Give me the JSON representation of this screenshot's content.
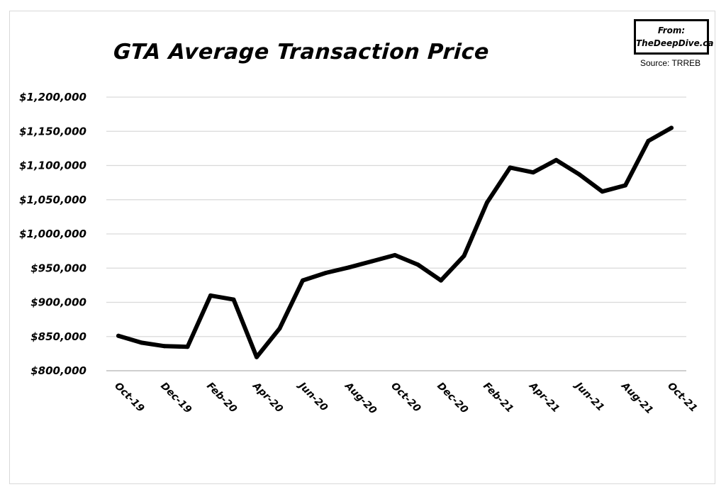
{
  "chart_data": {
    "type": "line",
    "title": "GTA Average Transaction Price",
    "badge_line1": "From:",
    "badge_line2": "TheDeepDive.ca",
    "source": "Source: TRREB",
    "xlabel": "",
    "ylabel": "",
    "ylim": [
      800000,
      1200000
    ],
    "yticks": [
      800000,
      850000,
      900000,
      950000,
      1000000,
      1050000,
      1100000,
      1150000,
      1200000
    ],
    "ytick_labels": [
      "$800,000",
      "$850,000",
      "$900,000",
      "$950,000",
      "$1,000,000",
      "$1,050,000",
      "$1,100,000",
      "$1,150,000",
      "$1,200,000"
    ],
    "grid": true,
    "line_color": "#000000",
    "categories": [
      "Oct-19",
      "Nov-19",
      "Dec-19",
      "Jan-20",
      "Feb-20",
      "Mar-20",
      "Apr-20",
      "May-20",
      "Jun-20",
      "Jul-20",
      "Aug-20",
      "Sep-20",
      "Oct-20",
      "Nov-20",
      "Dec-20",
      "Jan-21",
      "Feb-21",
      "Mar-21",
      "Apr-21",
      "May-21",
      "Jun-21",
      "Jul-21",
      "Aug-21",
      "Sep-21",
      "Oct-21"
    ],
    "x_tick_labels": [
      "Oct-19",
      "Dec-19",
      "Feb-20",
      "Apr-20",
      "Jun-20",
      "Aug-20",
      "Oct-20",
      "Dec-20",
      "Feb-21",
      "Apr-21",
      "Jun-21",
      "Aug-21",
      "Oct-21"
    ],
    "values": [
      851000,
      841000,
      836000,
      835000,
      910000,
      904000,
      820000,
      862000,
      932000,
      943000,
      951000,
      960000,
      969000,
      955000,
      932000,
      968000,
      1046000,
      1097000,
      1090000,
      1108000,
      1087000,
      1062000,
      1071000,
      1136000,
      1155000
    ]
  }
}
